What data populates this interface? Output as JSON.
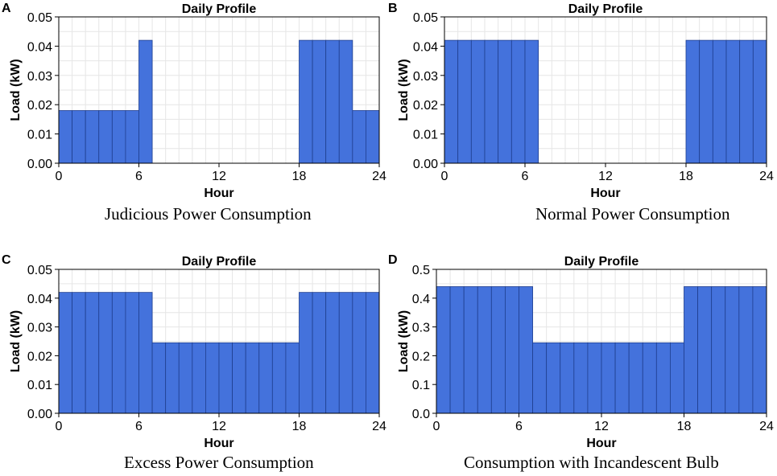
{
  "colors": {
    "bar": "#4472DC",
    "bar_edge": "#1F3F8F",
    "grid": "#e6e6e6",
    "axis": "#000000"
  },
  "chart_data": [
    {
      "panel": "A",
      "type": "bar",
      "title": "Daily Profile",
      "xlabel": "Hour",
      "ylabel": "Load (kW)",
      "caption": "Judicious Power Consumption",
      "xlim": [
        0,
        24
      ],
      "ylim": [
        0,
        0.05
      ],
      "xticks": [
        0,
        6,
        12,
        18,
        24
      ],
      "yticks": [
        0.0,
        0.01,
        0.02,
        0.03,
        0.04,
        0.05
      ],
      "ytick_labels": [
        "0.00",
        "0.01",
        "0.02",
        "0.03",
        "0.04",
        "0.05"
      ],
      "hours": [
        0,
        1,
        2,
        3,
        4,
        5,
        6,
        7,
        8,
        9,
        10,
        11,
        12,
        13,
        14,
        15,
        16,
        17,
        18,
        19,
        20,
        21,
        22,
        23
      ],
      "values": [
        0.018,
        0.018,
        0.018,
        0.018,
        0.018,
        0.018,
        0.042,
        0,
        0,
        0,
        0,
        0,
        0,
        0,
        0,
        0,
        0,
        0,
        0.042,
        0.042,
        0.042,
        0.042,
        0.018,
        0.018
      ]
    },
    {
      "panel": "B",
      "type": "bar",
      "title": "Daily Profile",
      "xlabel": "Hour",
      "ylabel": "Load (kW)",
      "caption": "Normal Power Consumption",
      "xlim": [
        0,
        24
      ],
      "ylim": [
        0,
        0.05
      ],
      "xticks": [
        0,
        6,
        12,
        18,
        24
      ],
      "yticks": [
        0.0,
        0.01,
        0.02,
        0.03,
        0.04,
        0.05
      ],
      "ytick_labels": [
        "0.00",
        "0.01",
        "0.02",
        "0.03",
        "0.04",
        "0.05"
      ],
      "hours": [
        0,
        1,
        2,
        3,
        4,
        5,
        6,
        7,
        8,
        9,
        10,
        11,
        12,
        13,
        14,
        15,
        16,
        17,
        18,
        19,
        20,
        21,
        22,
        23
      ],
      "values": [
        0.042,
        0.042,
        0.042,
        0.042,
        0.042,
        0.042,
        0.042,
        0,
        0,
        0,
        0,
        0,
        0,
        0,
        0,
        0,
        0,
        0,
        0.042,
        0.042,
        0.042,
        0.042,
        0.042,
        0.042
      ]
    },
    {
      "panel": "C",
      "type": "bar",
      "title": "Daily Profile",
      "xlabel": "Hour",
      "ylabel": "Load (kW)",
      "caption": "Excess Power Consumption",
      "xlim": [
        0,
        24
      ],
      "ylim": [
        0,
        0.05
      ],
      "xticks": [
        0,
        6,
        12,
        18,
        24
      ],
      "yticks": [
        0.0,
        0.01,
        0.02,
        0.03,
        0.04,
        0.05
      ],
      "ytick_labels": [
        "0.00",
        "0.01",
        "0.02",
        "0.03",
        "0.04",
        "0.05"
      ],
      "hours": [
        0,
        1,
        2,
        3,
        4,
        5,
        6,
        7,
        8,
        9,
        10,
        11,
        12,
        13,
        14,
        15,
        16,
        17,
        18,
        19,
        20,
        21,
        22,
        23
      ],
      "values": [
        0.042,
        0.042,
        0.042,
        0.042,
        0.042,
        0.042,
        0.042,
        0.0245,
        0.0245,
        0.0245,
        0.0245,
        0.0245,
        0.0245,
        0.0245,
        0.0245,
        0.0245,
        0.0245,
        0.0245,
        0.042,
        0.042,
        0.042,
        0.042,
        0.042,
        0.042
      ]
    },
    {
      "panel": "D",
      "type": "bar",
      "title": "Daily Profile",
      "xlabel": "Hour",
      "ylabel": "Load (kW)",
      "caption": "Consumption with Incandescent Bulb",
      "xlim": [
        0,
        24
      ],
      "ylim": [
        0,
        0.5
      ],
      "xticks": [
        0,
        6,
        12,
        18,
        24
      ],
      "yticks": [
        0.0,
        0.1,
        0.2,
        0.3,
        0.4,
        0.5
      ],
      "ytick_labels": [
        "0.0",
        "0.1",
        "0.2",
        "0.3",
        "0.4",
        "0.5"
      ],
      "hours": [
        0,
        1,
        2,
        3,
        4,
        5,
        6,
        7,
        8,
        9,
        10,
        11,
        12,
        13,
        14,
        15,
        16,
        17,
        18,
        19,
        20,
        21,
        22,
        23
      ],
      "values": [
        0.44,
        0.44,
        0.44,
        0.44,
        0.44,
        0.44,
        0.44,
        0.245,
        0.245,
        0.245,
        0.245,
        0.245,
        0.245,
        0.245,
        0.245,
        0.245,
        0.245,
        0.245,
        0.44,
        0.44,
        0.44,
        0.44,
        0.44,
        0.44
      ]
    }
  ]
}
